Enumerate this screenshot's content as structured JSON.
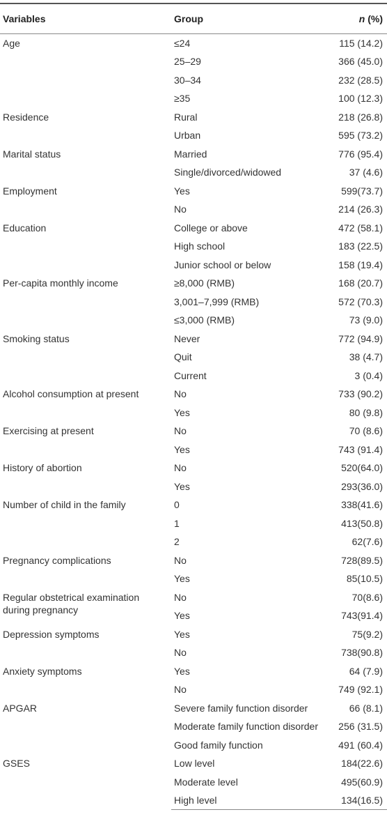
{
  "header": {
    "variables": "Variables",
    "group": "Group",
    "n_symbol": "n",
    "n_unit": "(%)"
  },
  "table": {
    "groups": [
      {
        "variable": "Age",
        "rows": [
          {
            "group": "≤24",
            "n": "115 (14.2)"
          },
          {
            "group": "25–29",
            "n": "366 (45.0)"
          },
          {
            "group": "30–34",
            "n": "232 (28.5)"
          },
          {
            "group": "≥35",
            "n": "100 (12.3)"
          }
        ]
      },
      {
        "variable": "Residence",
        "rows": [
          {
            "group": "Rural",
            "n": "218 (26.8)"
          },
          {
            "group": "Urban",
            "n": "595 (73.2)"
          }
        ]
      },
      {
        "variable": "Marital status",
        "rows": [
          {
            "group": "Married",
            "n": "776 (95.4)"
          },
          {
            "group": "Single/divorced/widowed",
            "n": "37 (4.6)"
          }
        ]
      },
      {
        "variable": "Employment",
        "rows": [
          {
            "group": "Yes",
            "n": "599(73.7)"
          },
          {
            "group": "No",
            "n": "214 (26.3)"
          }
        ]
      },
      {
        "variable": "Education",
        "rows": [
          {
            "group": "College or above",
            "n": "472 (58.1)"
          },
          {
            "group": "High school",
            "n": "183 (22.5)"
          },
          {
            "group": "Junior school or below",
            "n": "158 (19.4)"
          }
        ]
      },
      {
        "variable": "Per-capita monthly income",
        "rows": [
          {
            "group": "≥8,000 (RMB)",
            "n": "168 (20.7)"
          },
          {
            "group": "3,001–7,999 (RMB)",
            "n": "572 (70.3)"
          },
          {
            "group": "≤3,000 (RMB)",
            "n": "73 (9.0)"
          }
        ]
      },
      {
        "variable": "Smoking status",
        "rows": [
          {
            "group": "Never",
            "n": "772 (94.9)"
          },
          {
            "group": "Quit",
            "n": "38 (4.7)"
          },
          {
            "group": "Current",
            "n": "3 (0.4)"
          }
        ]
      },
      {
        "variable": "Alcohol consumption at present",
        "rows": [
          {
            "group": "No",
            "n": "733 (90.2)"
          },
          {
            "group": "Yes",
            "n": "80 (9.8)"
          }
        ]
      },
      {
        "variable": "Exercising at present",
        "rows": [
          {
            "group": "No",
            "n": "70 (8.6)"
          },
          {
            "group": "Yes",
            "n": "743 (91.4)"
          }
        ]
      },
      {
        "variable": "History of abortion",
        "rows": [
          {
            "group": "No",
            "n": "520(64.0)"
          },
          {
            "group": "Yes",
            "n": "293(36.0)"
          }
        ]
      },
      {
        "variable": "Number of child in the family",
        "rows": [
          {
            "group": "0",
            "n": "338(41.6)"
          },
          {
            "group": "1",
            "n": "413(50.8)"
          },
          {
            "group": "2",
            "n": "62(7.6)"
          }
        ]
      },
      {
        "variable": "Pregnancy complications",
        "rows": [
          {
            "group": "No",
            "n": "728(89.5)"
          },
          {
            "group": "Yes",
            "n": "85(10.5)"
          }
        ]
      },
      {
        "variable": "Regular obstetrical examination during pregnancy",
        "rows": [
          {
            "group": "No",
            "n": "70(8.6)"
          },
          {
            "group": "Yes",
            "n": "743(91.4)"
          }
        ]
      },
      {
        "variable": "Depression symptoms",
        "rows": [
          {
            "group": "Yes",
            "n": "75(9.2)"
          },
          {
            "group": "No",
            "n": "738(90.8)"
          }
        ]
      },
      {
        "variable": "Anxiety symptoms",
        "rows": [
          {
            "group": "Yes",
            "n": "64 (7.9)"
          },
          {
            "group": "No",
            "n": "749 (92.1)"
          }
        ]
      },
      {
        "variable": "APGAR",
        "rows": [
          {
            "group": "Severe family function disorder",
            "n": "66 (8.1)"
          },
          {
            "group": "Moderate family function disorder",
            "n": "256 (31.5)"
          },
          {
            "group": "Good family function",
            "n": "491 (60.4)"
          }
        ]
      },
      {
        "variable": "GSES",
        "rows": [
          {
            "group": "Low level",
            "n": "184(22.6)"
          },
          {
            "group": "Moderate level",
            "n": "495(60.9)"
          },
          {
            "group": "High level",
            "n": "134(16.5)"
          }
        ]
      }
    ]
  }
}
